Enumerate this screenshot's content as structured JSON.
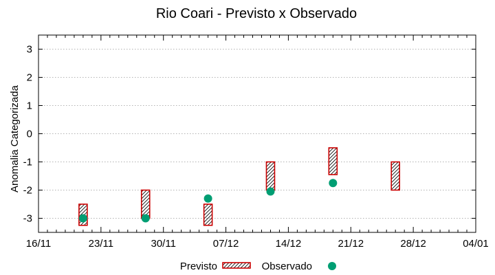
{
  "chart_data": {
    "type": "scatter",
    "title": "Rio Coari - Previsto x Observado",
    "xlabel": "",
    "ylabel": "Anomalia Categorizada",
    "x_ticks": [
      "16/11",
      "23/11",
      "30/11",
      "07/12",
      "14/12",
      "21/12",
      "28/12",
      "04/01"
    ],
    "x_minor_per_major": 7,
    "y_ticks": [
      3,
      2,
      1,
      0,
      -1,
      -2,
      -3
    ],
    "ylim": [
      -3.5,
      3.5
    ],
    "grid": "horizontal dotted",
    "legend_position": "bottom-center",
    "colors": {
      "previsto": "#cc0000",
      "observado": "#009e73"
    },
    "series": [
      {
        "name": "Previsto",
        "kind": "range-bar",
        "points": [
          {
            "x": "21/11",
            "low": -3.25,
            "high": -2.5
          },
          {
            "x": "28/11",
            "low": -3.0,
            "high": -2.0
          },
          {
            "x": "05/12",
            "low": -3.25,
            "high": -2.5
          },
          {
            "x": "12/12",
            "low": -2.0,
            "high": -1.0
          },
          {
            "x": "19/12",
            "low": -1.45,
            "high": -0.5
          },
          {
            "x": "26/12",
            "low": -2.0,
            "high": -1.0
          }
        ]
      },
      {
        "name": "Observado",
        "kind": "point",
        "points": [
          {
            "x": "21/11",
            "y": -3.0
          },
          {
            "x": "28/11",
            "y": -3.0
          },
          {
            "x": "05/12",
            "y": -2.3
          },
          {
            "x": "12/12",
            "y": -2.05
          },
          {
            "x": "19/12",
            "y": -1.75
          }
        ]
      }
    ]
  }
}
